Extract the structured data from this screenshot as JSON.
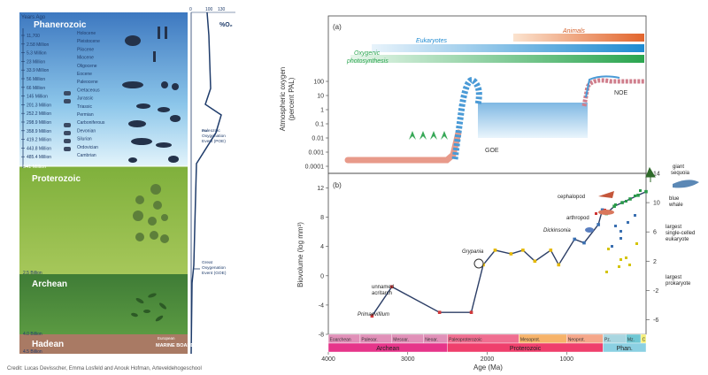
{
  "left": {
    "years_ago": "Years Ago",
    "eons": {
      "phanerozoic": "Phanerozoic",
      "proterozoic": "Proterozoic",
      "archean": "Archean",
      "hadean": "Hadean"
    },
    "times": [
      "11,700",
      "2.58 Million",
      "5.3 Million",
      "23 Million",
      "33.9 Million",
      "56 Million",
      "66 Million",
      "145 Million",
      "201.3 Million",
      "252.2 Million",
      "298.9 Million",
      "358.9 Million",
      "419.2 Million",
      "443.8 Million",
      "485.4 Million"
    ],
    "periods": [
      "Holocene",
      "Pleistocene",
      "Pliocene",
      "Miocene",
      "Oligocene",
      "Eocene",
      "Paleocene",
      "Cretaceous",
      "Jurassic",
      "Triassic",
      "Permian",
      "Carboniferous",
      "Devonian",
      "Silurian",
      "Ordovician",
      "Cambrian"
    ],
    "t541": "541 Million",
    "t2500": "2.5 Billion",
    "t4000": "4.0 Billion",
    "t4500": "4.5 Billion",
    "o2_axis": {
      "t0": "0",
      "t100": "100",
      "t130": "130",
      "label": "%O₂"
    },
    "poe": [
      "Paleozoic",
      "Oxygenation",
      "Event (POE)"
    ],
    "goe": [
      "Great",
      "Oxygenation",
      "Event (GOE)"
    ],
    "logo": [
      "European",
      "MARINE BOARD"
    ],
    "credit": "Credit: Lucas Devisscher, Emma Losfeld and Anouk Hofman, Arteveldehogeschool",
    "colors": {
      "phanerozoic_top": "#4b86c6",
      "phanerozoic_bottom": "#d2ecf8",
      "proterozoic": "#8db843",
      "archean": "#4f8a3a",
      "hadean": "#a97a64"
    }
  },
  "right": {
    "panel_a": {
      "label": "(a)",
      "ylabel": [
        "Atmospheric oxygen",
        "(percent PAL)"
      ],
      "yticks": [
        "100",
        "10",
        "1",
        "0.1",
        "0.01",
        "0.001",
        "0.0001"
      ],
      "bands": {
        "animals": "Animals",
        "eukaryotes": "Eukaryotes",
        "oxygenic": [
          "Oxygenic",
          "photosynthesis"
        ]
      },
      "goe": "GOE",
      "noe": "NOE"
    },
    "panel_b": {
      "label": "(b)",
      "ylabel": "Biovolume (log mm³)",
      "yticks": [
        "12",
        "8",
        "4",
        "0",
        "-4",
        "-8"
      ],
      "right_ticks": [
        "14",
        "10",
        "6",
        "2",
        "-2",
        "-6"
      ],
      "xlabel": "Age (Ma)",
      "xticks": [
        "4000",
        "3000",
        "2000",
        "1000"
      ],
      "annotations": {
        "unnamed": [
          "unnamed",
          "acritarch"
        ],
        "primaevifilum": "Primaevifilum",
        "grypania": "Grypania",
        "dickinsonia": "Dickinsonia",
        "arthropod": "arthropod",
        "cephalopod": "cephalopod",
        "sequoia": [
          "giant",
          "sequoia"
        ],
        "whale": [
          "blue",
          "whale"
        ],
        "largest_euk": [
          "largest",
          "single-celled",
          "eukaryote"
        ],
        "largest_prok": [
          "largest",
          "prokaryote"
        ]
      },
      "eras": [
        "Eoarchean",
        "Paleoar.",
        "Mesoar.",
        "Neoar.",
        "Paleoproterozoic",
        "Mesoprot.",
        "Neoprot.",
        "Pz.",
        "Mz.",
        "C"
      ],
      "eons": [
        "Archean",
        "Proterozoic",
        "Phan."
      ],
      "chart_data": {
        "type": "line",
        "x": [
          3450,
          3200,
          2600,
          2200,
          2050,
          1900,
          1700,
          1550,
          1400,
          1200,
          1100,
          900,
          780,
          600,
          550,
          500,
          400,
          300,
          200,
          100,
          0
        ],
        "y": [
          -5.5,
          -1.5,
          -5,
          -5,
          1.5,
          3.5,
          3,
          3.5,
          2,
          3.5,
          1.5,
          5,
          4.5,
          7,
          9,
          8.5,
          9.5,
          10,
          10.5,
          11,
          11.5
        ],
        "xlabel": "Age (Ma)",
        "ylabel": "Biovolume (log mm³)",
        "xlim": [
          4000,
          0
        ],
        "ylim": [
          -8,
          14
        ]
      }
    }
  }
}
